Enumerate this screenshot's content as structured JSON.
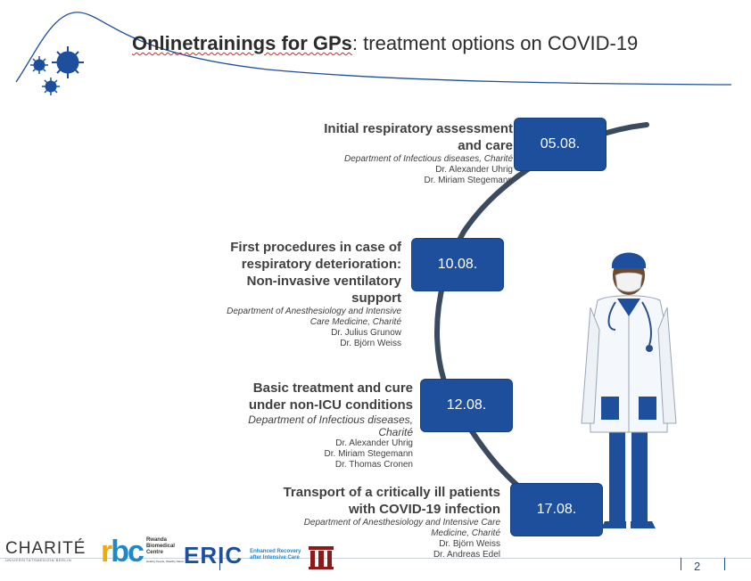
{
  "title": {
    "bold": "Onlinetrainings for GPs",
    "rest": ": treatment options on COVID-19"
  },
  "sessions": [
    {
      "date": "05.08.",
      "title_lines": [
        "Initial respiratory assessment",
        "and care"
      ],
      "dept_lines": [
        "Department of Infectious diseases, Charité"
      ],
      "persons": [
        "Dr. Alexander Uhrig",
        "Dr. Miriam Stegemann"
      ]
    },
    {
      "date": "10.08.",
      "title_lines": [
        "First procedures in case of",
        "respiratory deterioration:",
        "Non-invasive ventilatory",
        "support"
      ],
      "dept_lines": [
        "Department of Anesthesiology and Intensive",
        "Care Medicine, Charité"
      ],
      "persons": [
        "Dr. Julius Grunow",
        "Dr. Björn Weiss"
      ]
    },
    {
      "date": "12.08.",
      "title_lines": [
        "Basic treatment and cure",
        "under non-ICU conditions"
      ],
      "dept_lines": [
        "Department of Infectious diseases,",
        "Charité"
      ],
      "persons": [
        "Dr. Alexander Uhrig",
        "Dr. Miriam Stegemann",
        "Dr. Thomas Cronen"
      ]
    },
    {
      "date": "17.08.",
      "title_lines": [
        "Transport of a critically ill patients",
        "with COVID-19 infection"
      ],
      "dept_lines": [
        "Department of Anesthesiology and Intensive Care",
        "Medicine, Charité"
      ],
      "persons": [
        "Dr. Björn Weiss",
        "Dr. Andreas Edel"
      ]
    }
  ],
  "footer": {
    "charite": "CHARITÉ",
    "charite_sub": "UNIVERSITÄTSMEDIZIN BERLIN",
    "rbc": "rbc",
    "rbc_text": [
      "Rwanda",
      "Biomedical",
      "Centre"
    ],
    "rbc_tag": "Healthy People, Wealthy Nation",
    "eric": "ERIC",
    "eric_text": [
      "Enhanced Recovery",
      "after Intensive Care"
    ],
    "page_number": "2"
  },
  "colors": {
    "accent": "#1d4f9c",
    "arc": "#3a4a5f"
  },
  "icons": [
    "virus-icon",
    "doctor-illustration",
    "charite-logo",
    "rbc-logo",
    "eric-logo",
    "university-logo"
  ]
}
